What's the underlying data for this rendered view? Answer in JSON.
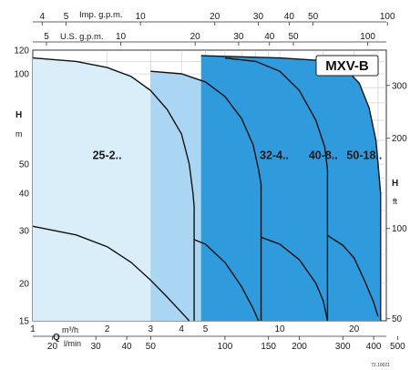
{
  "chart_data": {
    "type": "area",
    "title": "MXV-B",
    "x_scale": "log",
    "y_scale": "log",
    "xlim": [
      1,
      27
    ],
    "ylim": [
      15,
      120
    ],
    "x_primary": {
      "quantity": "Q",
      "unit": "m³/h",
      "ticks": [
        "1",
        "2",
        "3",
        "4",
        "5",
        "10",
        "20"
      ]
    },
    "x_secondary": {
      "unit": "l/min",
      "ticks": [
        "20",
        "30",
        "40",
        "50",
        "100",
        "150",
        "200",
        "300",
        "400",
        "500"
      ]
    },
    "x_top_imp": {
      "unit": "Imp. g.p.m.",
      "ticks": [
        "4",
        "5",
        "10",
        "20",
        "30",
        "40",
        "50",
        "100"
      ]
    },
    "x_top_us": {
      "unit": "U.S. g.p.m.",
      "ticks": [
        "5",
        "10",
        "20",
        "30",
        "40",
        "50",
        "100"
      ]
    },
    "y_left": {
      "quantity": "H",
      "unit": "m",
      "ticks": [
        "15",
        "20",
        "30",
        "40",
        "50",
        "100",
        "120"
      ]
    },
    "y_right": {
      "quantity": "H",
      "unit": "ft",
      "ticks": [
        "50",
        "100",
        "200",
        "300"
      ]
    },
    "series": [
      {
        "name": "25-2..",
        "color": "#daeefa",
        "upper": [
          [
            1,
            113
          ],
          [
            1.5,
            110
          ],
          [
            2,
            105
          ],
          [
            2.5,
            98
          ],
          [
            3,
            88
          ],
          [
            3.5,
            76
          ],
          [
            4,
            63
          ],
          [
            4.3,
            50
          ],
          [
            4.45,
            40
          ],
          [
            4.5,
            36
          ]
        ],
        "lower": [
          [
            1,
            31
          ],
          [
            1.5,
            29
          ],
          [
            2,
            26.5
          ],
          [
            2.5,
            23.5
          ],
          [
            3,
            20.5
          ],
          [
            3.5,
            18
          ],
          [
            4,
            16
          ],
          [
            4.3,
            15
          ]
        ],
        "max_q": 4.5
      },
      {
        "name": "32-4..",
        "color": "#aad6f3",
        "upper": [
          [
            3,
            102
          ],
          [
            4,
            100
          ],
          [
            5,
            94
          ],
          [
            6,
            84
          ],
          [
            7,
            71
          ],
          [
            7.8,
            58
          ],
          [
            8.2,
            48
          ],
          [
            8.4,
            43
          ]
        ],
        "lower": [
          [
            4.5,
            28
          ],
          [
            5,
            27
          ],
          [
            6,
            23.5
          ],
          [
            7,
            19.5
          ],
          [
            7.8,
            16.5
          ],
          [
            8.2,
            15
          ]
        ],
        "max_q": 8.4
      },
      {
        "name": "40-8..",
        "color": "#74bbea",
        "upper": [
          [
            6,
            113
          ],
          [
            8,
            110
          ],
          [
            10,
            102
          ],
          [
            12,
            88
          ],
          [
            14,
            70
          ],
          [
            15.2,
            57
          ],
          [
            15.6,
            48
          ]
        ],
        "lower": [
          [
            8.4,
            28.5
          ],
          [
            10,
            27
          ],
          [
            12,
            24
          ],
          [
            14,
            20
          ],
          [
            15,
            17.5
          ],
          [
            15.6,
            15
          ]
        ],
        "max_q": 15.6
      },
      {
        "name": "50-18..",
        "color": "#2f9adc",
        "upper": [
          [
            4.8,
            115
          ],
          [
            10,
            113
          ],
          [
            14,
            111
          ],
          [
            18,
            106
          ],
          [
            21,
            93
          ],
          [
            23,
            77
          ],
          [
            24.5,
            60
          ],
          [
            25.3,
            45
          ],
          [
            25.6,
            40
          ]
        ],
        "lower": [
          [
            15.6,
            29
          ],
          [
            16,
            28.5
          ],
          [
            18,
            26.8
          ],
          [
            20,
            24.3
          ],
          [
            22,
            20.5
          ],
          [
            24,
            17.3
          ],
          [
            25,
            15.5
          ]
        ],
        "max_q": 25.6
      }
    ]
  },
  "doc_code": "72.10021"
}
